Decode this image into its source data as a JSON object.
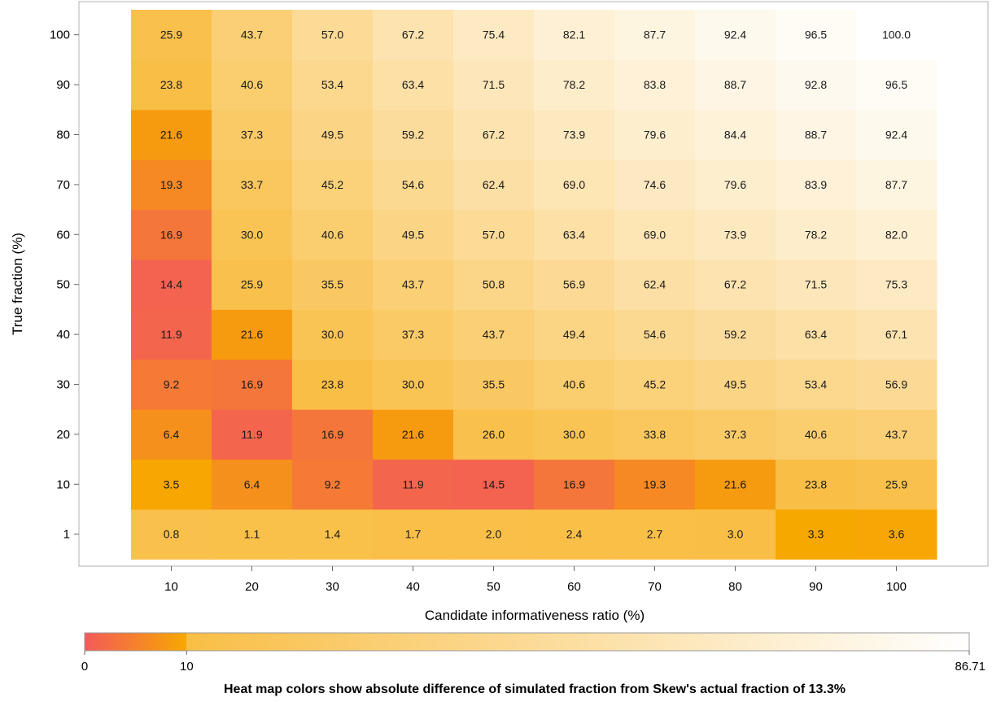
{
  "chart_data": {
    "type": "heatmap",
    "xlabel": "Candidate informativeness ratio (%)",
    "ylabel": "True fraction (%)",
    "x": [
      "10",
      "20",
      "30",
      "40",
      "50",
      "60",
      "70",
      "80",
      "90",
      "100"
    ],
    "y": [
      "1",
      "10",
      "20",
      "30",
      "40",
      "50",
      "60",
      "70",
      "80",
      "90",
      "100"
    ],
    "reference_value": 13.3,
    "values": [
      [
        0.8,
        1.1,
        1.4,
        1.7,
        2.0,
        2.4,
        2.7,
        3.0,
        3.3,
        3.6
      ],
      [
        3.5,
        6.4,
        9.2,
        11.9,
        14.5,
        16.9,
        19.3,
        21.6,
        23.8,
        25.9
      ],
      [
        6.4,
        11.9,
        16.9,
        21.6,
        26.0,
        30.0,
        33.8,
        37.3,
        40.6,
        43.7
      ],
      [
        9.2,
        16.9,
        23.8,
        30.0,
        35.5,
        40.6,
        45.2,
        49.5,
        53.4,
        56.9
      ],
      [
        11.9,
        21.6,
        30.0,
        37.3,
        43.7,
        49.4,
        54.6,
        59.2,
        63.4,
        67.1
      ],
      [
        14.4,
        25.9,
        35.5,
        43.7,
        50.8,
        56.9,
        62.4,
        67.2,
        71.5,
        75.3
      ],
      [
        16.9,
        30.0,
        40.6,
        49.5,
        57.0,
        63.4,
        69.0,
        73.9,
        78.2,
        82.0
      ],
      [
        19.3,
        33.7,
        45.2,
        54.6,
        62.4,
        69.0,
        74.6,
        79.6,
        83.9,
        87.7
      ],
      [
        21.6,
        37.3,
        49.5,
        59.2,
        67.2,
        73.9,
        79.6,
        84.4,
        88.7,
        92.4
      ],
      [
        23.8,
        40.6,
        53.4,
        63.4,
        71.5,
        78.2,
        83.8,
        88.7,
        92.8,
        96.5
      ],
      [
        25.9,
        43.7,
        57.0,
        67.2,
        75.4,
        82.1,
        87.7,
        92.4,
        96.5,
        100.0
      ]
    ],
    "colorbar": {
      "min": 0,
      "break": 10,
      "max": 86.71,
      "tick_labels": [
        "0",
        "10",
        "86.71"
      ],
      "low_colors": [
        "#f45a5a",
        "#f7a800"
      ],
      "high_colors": [
        "#f9be45",
        "#ffffff"
      ]
    },
    "caption": "Heat map colors show absolute difference of simulated fraction from Skew's actual fraction of 13.3%",
    "grid": false
  }
}
